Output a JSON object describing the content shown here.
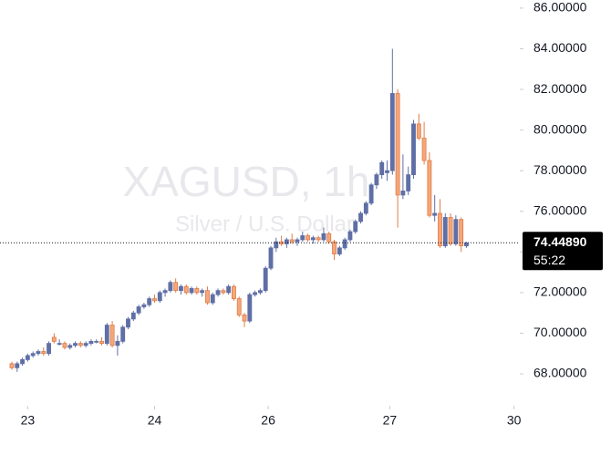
{
  "chart_data": {
    "type": "candlestick",
    "watermark_title": "XAGUSD, 1h",
    "watermark_subtitle": "Silver / U.S. Dollar",
    "up_color": "#5f6fa6",
    "down_color": "#f4a77a",
    "down_border": "#e07c45",
    "ylim": [
      66.43,
      86.4
    ],
    "yticks": [
      {
        "value": 68,
        "label": "68.00000"
      },
      {
        "value": 70,
        "label": "70.00000"
      },
      {
        "value": 72,
        "label": "72.00000"
      },
      {
        "value": 74,
        "label": "74.00000"
      },
      {
        "value": 76,
        "label": "76.00000"
      },
      {
        "value": 78,
        "label": "78.00000"
      },
      {
        "value": 80,
        "label": "80.00000"
      },
      {
        "value": 82,
        "label": "82.00000"
      },
      {
        "value": 84,
        "label": "84.00000"
      },
      {
        "value": 86,
        "label": "86.00000"
      }
    ],
    "xlim": [
      -2.24,
      96.1
    ],
    "xticks": [
      {
        "value": 3,
        "label": "23"
      },
      {
        "value": 27,
        "label": "24"
      },
      {
        "value": 48.5,
        "label": "26"
      },
      {
        "value": 71.5,
        "label": "27"
      },
      {
        "value": 95,
        "label": "30"
      }
    ],
    "last_price": {
      "value": 74.4489,
      "label": "74.44890"
    },
    "countdown": "55:22",
    "ohlc": [
      [
        68.5,
        68.6,
        68.2,
        68.3
      ],
      [
        68.3,
        68.6,
        68.1,
        68.5
      ],
      [
        68.5,
        68.8,
        68.4,
        68.7
      ],
      [
        68.7,
        69.0,
        68.6,
        68.9
      ],
      [
        68.9,
        69.1,
        68.8,
        69.0
      ],
      [
        69.0,
        69.2,
        68.9,
        69.1
      ],
      [
        69.1,
        69.3,
        68.9,
        69.0
      ],
      [
        69.0,
        69.6,
        68.9,
        69.5
      ],
      [
        69.8,
        70.0,
        69.5,
        69.6
      ],
      [
        69.5,
        69.7,
        69.4,
        69.5
      ],
      [
        69.5,
        69.6,
        69.2,
        69.3
      ],
      [
        69.3,
        69.5,
        69.2,
        69.4
      ],
      [
        69.4,
        69.6,
        69.3,
        69.5
      ],
      [
        69.5,
        69.6,
        69.3,
        69.4
      ],
      [
        69.4,
        69.6,
        69.3,
        69.5
      ],
      [
        69.5,
        69.7,
        69.4,
        69.6
      ],
      [
        69.6,
        69.7,
        69.5,
        69.6
      ],
      [
        69.6,
        69.8,
        69.4,
        69.5
      ],
      [
        69.5,
        70.5,
        69.4,
        70.4
      ],
      [
        70.4,
        70.6,
        69.3,
        69.4
      ],
      [
        69.4,
        69.9,
        68.9,
        69.6
      ],
      [
        69.6,
        70.4,
        69.5,
        70.3
      ],
      [
        70.3,
        70.8,
        70.2,
        70.7
      ],
      [
        70.7,
        71.1,
        70.6,
        71.0
      ],
      [
        71.0,
        71.4,
        70.9,
        71.3
      ],
      [
        71.3,
        71.5,
        71.2,
        71.4
      ],
      [
        71.4,
        71.8,
        71.3,
        71.7
      ],
      [
        71.7,
        71.9,
        71.5,
        71.6
      ],
      [
        71.6,
        72.1,
        71.5,
        72.0
      ],
      [
        72.0,
        72.2,
        71.8,
        72.1
      ],
      [
        72.1,
        72.6,
        72.0,
        72.5
      ],
      [
        72.5,
        72.7,
        72.0,
        72.1
      ],
      [
        72.1,
        72.4,
        71.9,
        72.3
      ],
      [
        72.3,
        72.4,
        71.9,
        72.0
      ],
      [
        72.0,
        72.3,
        71.9,
        72.2
      ],
      [
        72.2,
        72.3,
        71.9,
        72.0
      ],
      [
        72.0,
        72.2,
        71.8,
        72.1
      ],
      [
        72.1,
        72.3,
        71.4,
        71.5
      ],
      [
        71.5,
        72.0,
        71.4,
        71.9
      ],
      [
        71.9,
        72.2,
        71.8,
        72.1
      ],
      [
        72.1,
        72.2,
        71.9,
        72.0
      ],
      [
        72.0,
        72.4,
        71.9,
        72.3
      ],
      [
        72.3,
        72.4,
        71.6,
        71.7
      ],
      [
        71.7,
        71.8,
        70.8,
        70.9
      ],
      [
        70.9,
        71.0,
        70.3,
        70.6
      ],
      [
        70.6,
        72.0,
        70.5,
        71.9
      ],
      [
        71.9,
        72.1,
        71.8,
        72.0
      ],
      [
        72.0,
        72.2,
        71.9,
        72.1
      ],
      [
        72.1,
        73.3,
        72.0,
        73.2
      ],
      [
        73.2,
        74.3,
        73.1,
        74.2
      ],
      [
        74.2,
        74.7,
        74.0,
        74.5
      ],
      [
        74.5,
        74.8,
        74.3,
        74.4
      ],
      [
        74.4,
        74.7,
        74.2,
        74.6
      ],
      [
        74.6,
        74.9,
        74.4,
        74.5
      ],
      [
        74.5,
        74.7,
        74.3,
        74.6
      ],
      [
        74.6,
        75.0,
        74.5,
        74.8
      ],
      [
        74.8,
        74.9,
        74.5,
        74.6
      ],
      [
        74.6,
        74.8,
        74.4,
        74.7
      ],
      [
        74.7,
        74.8,
        74.5,
        74.6
      ],
      [
        74.6,
        75.2,
        74.5,
        74.9
      ],
      [
        74.9,
        75.0,
        74.4,
        74.5
      ],
      [
        74.5,
        74.6,
        73.6,
        73.9
      ],
      [
        73.9,
        74.3,
        73.8,
        74.2
      ],
      [
        74.2,
        74.7,
        74.1,
        74.6
      ],
      [
        74.6,
        75.1,
        74.5,
        75.0
      ],
      [
        75.0,
        75.6,
        74.9,
        75.5
      ],
      [
        75.5,
        76.0,
        75.4,
        75.9
      ],
      [
        75.9,
        76.5,
        75.8,
        76.4
      ],
      [
        76.4,
        77.4,
        76.3,
        77.3
      ],
      [
        77.3,
        77.9,
        77.1,
        77.8
      ],
      [
        77.8,
        78.5,
        77.6,
        78.4
      ],
      [
        77.9,
        78.5,
        77.5,
        78.0
      ],
      [
        78.0,
        84.0,
        77.8,
        81.8
      ],
      [
        81.8,
        82.0,
        75.2,
        76.8
      ],
      [
        76.8,
        78.8,
        76.6,
        77.0
      ],
      [
        77.0,
        78.2,
        76.8,
        77.8
      ],
      [
        77.8,
        80.5,
        77.6,
        80.3
      ],
      [
        80.3,
        80.8,
        79.5,
        79.6
      ],
      [
        79.6,
        80.4,
        78.3,
        78.5
      ],
      [
        78.5,
        78.9,
        75.7,
        75.8
      ],
      [
        75.8,
        76.8,
        75.5,
        75.9
      ],
      [
        75.9,
        76.6,
        74.2,
        74.3
      ],
      [
        74.3,
        75.9,
        74.2,
        75.7
      ],
      [
        75.7,
        75.9,
        74.3,
        74.4
      ],
      [
        74.4,
        75.8,
        74.3,
        75.6
      ],
      [
        75.6,
        75.7,
        74.0,
        74.3
      ],
      [
        74.3,
        74.5,
        74.2,
        74.4489
      ]
    ]
  }
}
